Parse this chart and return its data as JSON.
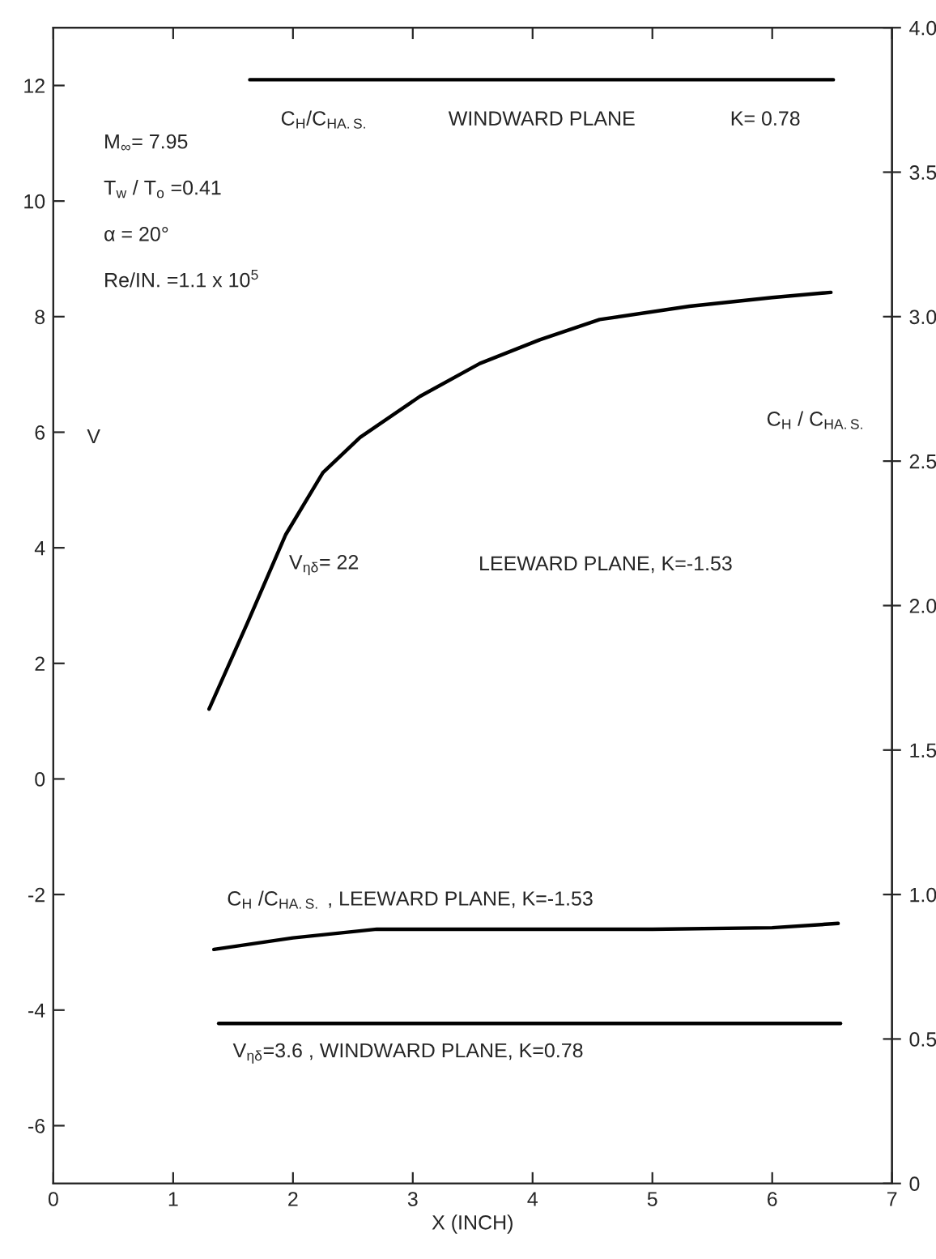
{
  "chart_data": {
    "type": "line",
    "xlabel": "X (INCH)",
    "ylabel": "V",
    "y2label": "C$_{H}$ / C$_{HA.S.}$",
    "xlim": [
      0,
      7
    ],
    "xticks": [
      0,
      1,
      2,
      3,
      4,
      5,
      6,
      7
    ],
    "ylim": [
      -7,
      13
    ],
    "yticks": [
      -6,
      -4,
      -2,
      0,
      2,
      4,
      6,
      8,
      10,
      12
    ],
    "y2lim": [
      0,
      4
    ],
    "y2ticks": [
      0,
      0.5,
      {
        "value": 1,
        "label": "1.0"
      },
      1.5,
      {
        "value": 2,
        "label": "2.0"
      },
      2.5,
      {
        "value": 3,
        "label": "3.0"
      },
      3.5,
      {
        "value": 4,
        "label": "4.0"
      }
    ],
    "grid": false,
    "line_style": "solid",
    "marker": "none",
    "series": [
      {
        "color": "#000000",
        "x": [
          1.3,
          1.62,
          1.94,
          2.25,
          2.56,
          3.06,
          3.56,
          4.06,
          4.56,
          5.31,
          6.0,
          6.49
        ],
        "values": [
          1.21,
          2.7,
          4.23,
          5.3,
          5.91,
          6.62,
          7.19,
          7.6,
          7.95,
          8.18,
          8.33,
          8.42
        ]
      },
      {
        "color": "#000000",
        "axis": "y2",
        "x": [
          1.64,
          6.51
        ],
        "values": [
          3.82,
          3.82
        ]
      },
      {
        "color": "#000000",
        "axis": "y2",
        "x": [
          1.34,
          2.0,
          2.7,
          4.0,
          5.0,
          6.0,
          6.55
        ],
        "values": [
          0.81,
          0.85,
          0.88,
          0.88,
          0.88,
          0.885,
          0.9
        ]
      },
      {
        "color": "#000000",
        "x": [
          1.38,
          6.57
        ],
        "values": [
          -4.23,
          -4.23
        ]
      }
    ],
    "annotations": [
      "M$_{∞}$= 7.95",
      "T$_{w}$ / T$_{o}$ =0.41",
      "α = 20°",
      "Re/IN. =1.1 x 10$^{5}$",
      "LEEWARD PLANE, K=-1.53",
      "C$_{H}$/C$_{HA.S.}$",
      "WINDWARD PLANE",
      "K= 0.78",
      "V$_{ηδ}$= 22",
      "C$_{H}$ /C$_{HA.S.}$ , LEEWARD PLANE, K=-1.53",
      "V$_{ηδ}$=3.6 , WINDWARD PLANE, K=0.78"
    ]
  }
}
